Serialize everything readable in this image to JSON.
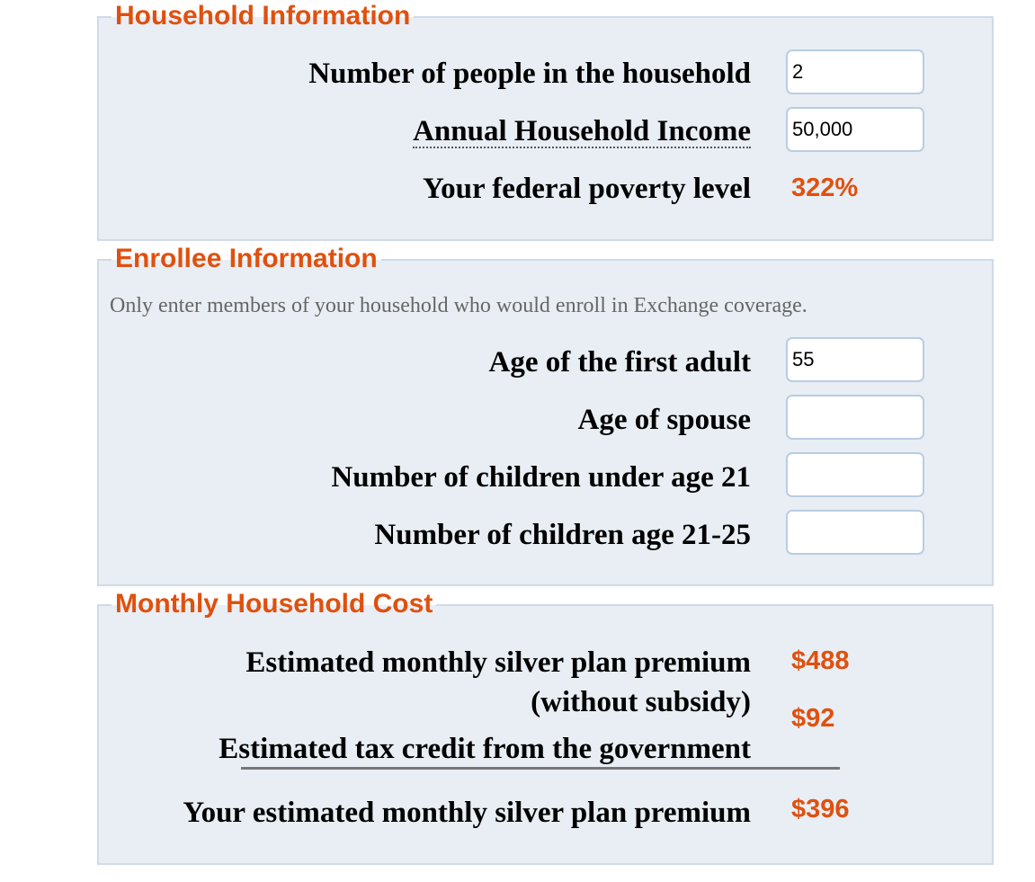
{
  "household": {
    "legend": "Household Information",
    "people_label": "Number of people in the household",
    "people_value": "2",
    "income_label": "Annual Household Income",
    "income_value": "50,000",
    "fpl_label": "Your federal poverty level",
    "fpl_value": "322%"
  },
  "enrollee": {
    "legend": "Enrollee Information",
    "note": "Only enter members of your household who would enroll in Exchange coverage.",
    "first_adult_label": "Age of the first adult",
    "first_adult_value": "55",
    "spouse_label": "Age of spouse",
    "spouse_value": "",
    "children_under_21_label": "Number of children under age 21",
    "children_under_21_value": "",
    "children_21_25_label": "Number of children age 21-25",
    "children_21_25_value": ""
  },
  "cost": {
    "legend": "Monthly Household Cost",
    "premium_label_line1": "Estimated monthly silver plan premium",
    "premium_label_line2": "(without subsidy)",
    "premium_value": "$488",
    "tax_credit_label": "Estimated tax credit from the government",
    "tax_credit_value": "$92",
    "net_premium_label": "Your estimated monthly silver plan premium",
    "net_premium_value": "$396"
  },
  "colors": {
    "accent": "#e0500e",
    "panel_background": "#e8eef4",
    "panel_border": "#cfdbe7",
    "input_border": "#b9cde2"
  }
}
